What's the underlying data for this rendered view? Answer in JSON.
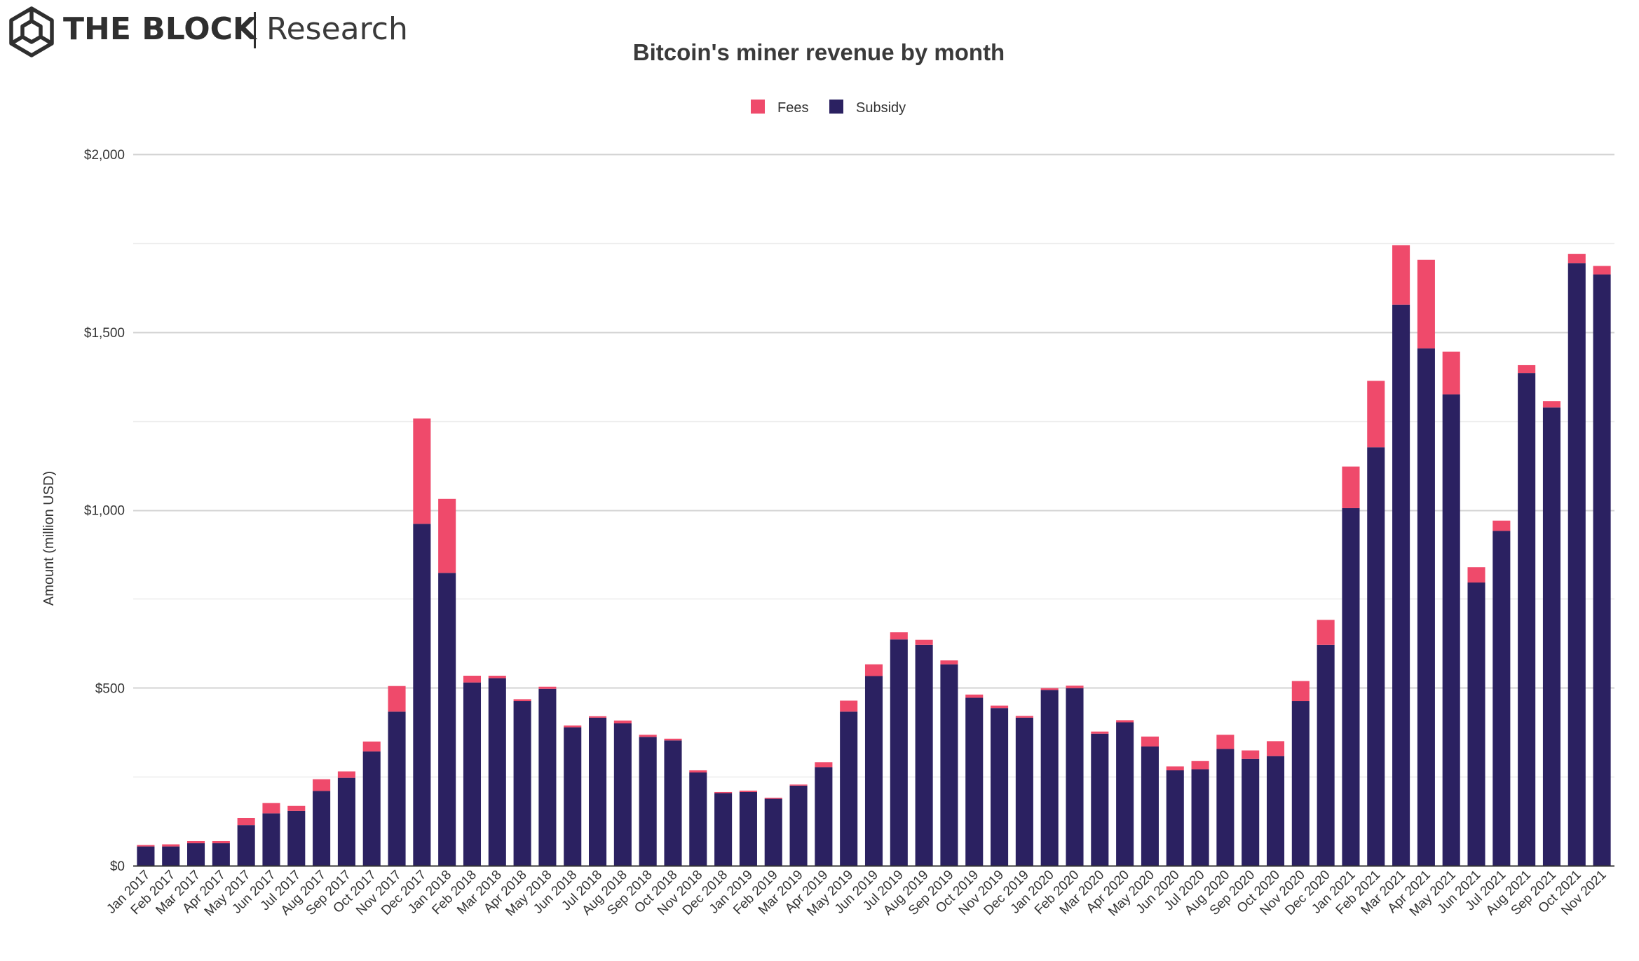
{
  "brand": {
    "name": "THE BLOCK",
    "sub": "Research"
  },
  "chart_data": {
    "type": "bar",
    "stacked": true,
    "title": "Bitcoin's miner revenue by month",
    "xlabel": "",
    "ylabel": "Amount (million USD)",
    "ylim": [
      0,
      2000
    ],
    "y_ticks": [
      0,
      500,
      1000,
      1500,
      2000
    ],
    "y_tick_labels": [
      "$0",
      "$500",
      "$1,000",
      "$1,500",
      "$2,000"
    ],
    "grid": true,
    "legend_position": "top-center",
    "categories": [
      "Jan 2017",
      "Feb 2017",
      "Mar 2017",
      "Apr 2017",
      "May 2017",
      "Jun 2017",
      "Jul 2017",
      "Aug 2017",
      "Sep 2017",
      "Oct 2017",
      "Nov 2017",
      "Dec 2017",
      "Jan 2018",
      "Feb 2018",
      "Mar 2018",
      "Apr 2018",
      "May 2018",
      "Jun 2018",
      "Jul 2018",
      "Aug 2018",
      "Sep 2018",
      "Oct 2018",
      "Nov 2018",
      "Dec 2018",
      "Jan 2019",
      "Feb 2019",
      "Mar 2019",
      "Apr 2019",
      "May 2019",
      "Jun 2019",
      "Jul 2019",
      "Aug 2019",
      "Sep 2019",
      "Oct 2019",
      "Nov 2019",
      "Dec 2019",
      "Jan 2020",
      "Feb 2020",
      "Mar 2020",
      "Apr 2020",
      "May 2020",
      "Jun 2020",
      "Jul 2020",
      "Aug 2020",
      "Sep 2020",
      "Oct 2020",
      "Nov 2020",
      "Dec 2020",
      "Jan 2021",
      "Feb 2021",
      "Mar 2021",
      "Apr 2021",
      "May 2021",
      "Jun 2021",
      "Jul 2021",
      "Aug 2021",
      "Sep 2021",
      "Oct 2021",
      "Nov 2021"
    ],
    "series": [
      {
        "name": "Subsidy",
        "color": "#2b2161",
        "values": [
          54,
          54,
          63,
          63,
          114,
          147,
          154,
          210,
          247,
          321,
          433,
          961,
          823,
          515,
          527,
          463,
          497,
          389,
          416,
          400,
          362,
          352,
          262,
          204,
          207,
          188,
          225,
          277,
          433,
          533,
          636,
          621,
          566,
          472,
          443,
          416,
          494,
          499,
          371,
          403,
          335,
          268,
          271,
          328,
          300,
          308,
          463,
          621,
          1005,
          1176,
          1577,
          1454,
          1325,
          796,
          941,
          1385,
          1288,
          1694,
          1662
        ]
      },
      {
        "name": "Fees",
        "color": "#ef4a6b",
        "values": [
          4,
          6,
          6,
          6,
          20,
          29,
          14,
          33,
          18,
          28,
          72,
          296,
          208,
          19,
          7,
          5,
          6,
          5,
          4,
          8,
          6,
          5,
          6,
          3,
          4,
          3,
          3,
          14,
          31,
          33,
          20,
          14,
          11,
          9,
          7,
          5,
          5,
          7,
          6,
          6,
          28,
          11,
          23,
          40,
          24,
          42,
          56,
          70,
          117,
          187,
          167,
          249,
          120,
          43,
          29,
          22,
          18,
          26,
          24
        ]
      }
    ]
  }
}
